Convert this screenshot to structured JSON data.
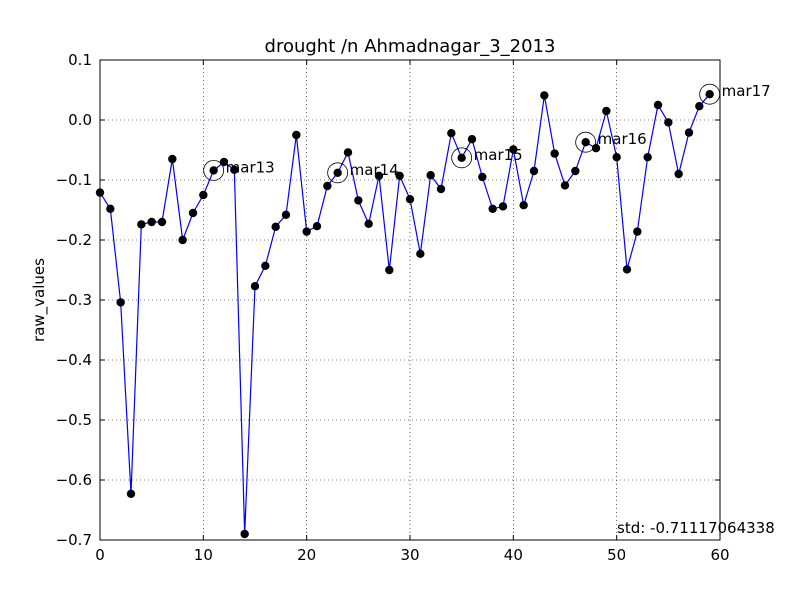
{
  "chart_data": {
    "type": "line",
    "title": "drought /n Ahmadnagar_3_2013",
    "xlabel": "",
    "ylabel": "raw_values",
    "xlim": [
      0,
      60
    ],
    "ylim": [
      -0.7,
      0.1
    ],
    "xticks": [
      0,
      10,
      20,
      30,
      40,
      50,
      60
    ],
    "yticks": [
      0.1,
      0.0,
      -0.1,
      -0.2,
      -0.3,
      -0.4,
      -0.5,
      -0.6,
      -0.7
    ],
    "xtick_labels": [
      "0",
      "10",
      "20",
      "30",
      "40",
      "50",
      "60"
    ],
    "ytick_labels": [
      "0.1",
      "0.0",
      "−0.1",
      "−0.2",
      "−0.3",
      "−0.4",
      "−0.5",
      "−0.6",
      "−0.7"
    ],
    "grid": true,
    "line_color": "#0000ff",
    "marker_color": "#000000",
    "series": [
      {
        "x": [
          0,
          1,
          2,
          3,
          4,
          5,
          6,
          7,
          8,
          9,
          10,
          11,
          12,
          13,
          14,
          15,
          16,
          17,
          18,
          19,
          20,
          21,
          22,
          23,
          24,
          25,
          26,
          27,
          28,
          29,
          30,
          31,
          32,
          33,
          34,
          35,
          36,
          37,
          38,
          39,
          40,
          41,
          42,
          43,
          44,
          45,
          46,
          47,
          48,
          49,
          50,
          51,
          52,
          53,
          54,
          55,
          56,
          57,
          58,
          59
        ],
        "values": [
          -0.121,
          -0.148,
          -0.304,
          -0.623,
          -0.174,
          -0.17,
          -0.17,
          -0.065,
          -0.2,
          -0.155,
          -0.125,
          -0.084,
          -0.07,
          -0.083,
          -0.69,
          -0.277,
          -0.243,
          -0.178,
          -0.158,
          -0.025,
          -0.186,
          -0.177,
          -0.11,
          -0.088,
          -0.054,
          -0.134,
          -0.173,
          -0.093,
          -0.25,
          -0.093,
          -0.132,
          -0.223,
          -0.092,
          -0.115,
          -0.022,
          -0.063,
          -0.032,
          -0.095,
          -0.148,
          -0.144,
          -0.049,
          -0.142,
          -0.085,
          0.041,
          -0.056,
          -0.109,
          -0.085,
          -0.037,
          -0.047,
          0.015,
          -0.062,
          -0.249,
          -0.186,
          -0.062,
          0.025,
          -0.004,
          -0.09,
          -0.021,
          0.023,
          0.043
        ]
      }
    ],
    "annotations": [
      {
        "label": "mar13",
        "x": 11,
        "y": -0.084
      },
      {
        "label": "mar14",
        "x": 23,
        "y": -0.088
      },
      {
        "label": "mar15",
        "x": 35,
        "y": -0.063
      },
      {
        "label": "mar16",
        "x": 47,
        "y": -0.037
      },
      {
        "label": "mar17",
        "x": 59,
        "y": 0.043
      }
    ],
    "std_text": "std: -0.71117064338"
  }
}
